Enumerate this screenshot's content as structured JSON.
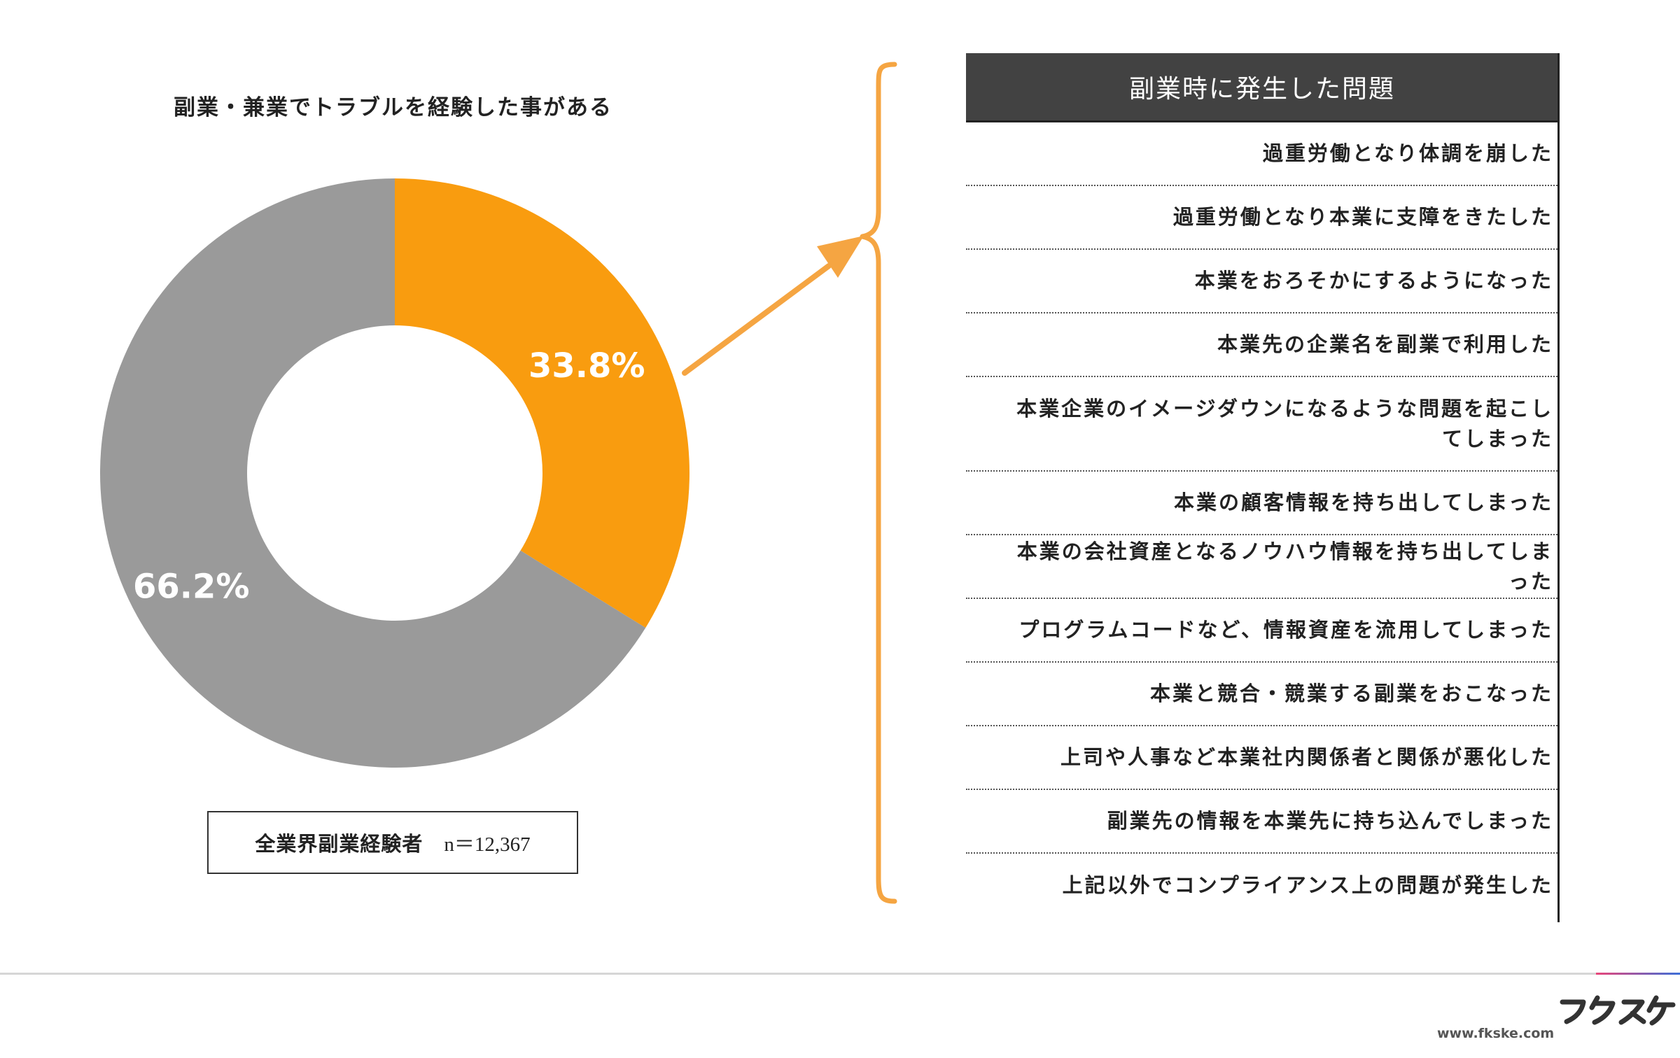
{
  "colors": {
    "orange": "#f99c0f",
    "gray": "#9a9a9a",
    "header_bg": "#424242",
    "bracket": "#f5a542"
  },
  "chart_data": {
    "type": "pie",
    "variant": "donut",
    "title": "副業・兼業でトラブルを経験した事がある",
    "slices": [
      {
        "value": 33.8,
        "label": "33.8%",
        "color": "#f99c0f"
      },
      {
        "value": 66.2,
        "label": "66.2%",
        "color": "#9a9a9a"
      }
    ],
    "legend": "none"
  },
  "sample": {
    "label": "全業界副業経験者",
    "n": "n＝12,367"
  },
  "problems": {
    "header": "副業時に発生した問題",
    "items": [
      "過重労働となり体調を崩した",
      "過重労働となり本業に支障をきたした",
      "本業をおろそかにするようになった",
      "本業先の企業名を副業で利用した",
      "本業企業のイメージダウンになるような問題を起こしてしまった",
      "本業の顧客情報を持ち出してしまった",
      "本業の会社資産となるノウハウ情報を持ち出してしまった",
      "プログラムコードなど、情報資産を流用してしまった",
      "本業と競合・競業する副業をおこなった",
      "上司や人事など本業社内関係者と関係が悪化した",
      "副業先の情報を本業先に持ち込んでしまった",
      "上記以外でコンプライアンス上の問題が発生した"
    ]
  },
  "footer": {
    "logo_text": "フクスケ",
    "url": "www.fkske.com"
  }
}
